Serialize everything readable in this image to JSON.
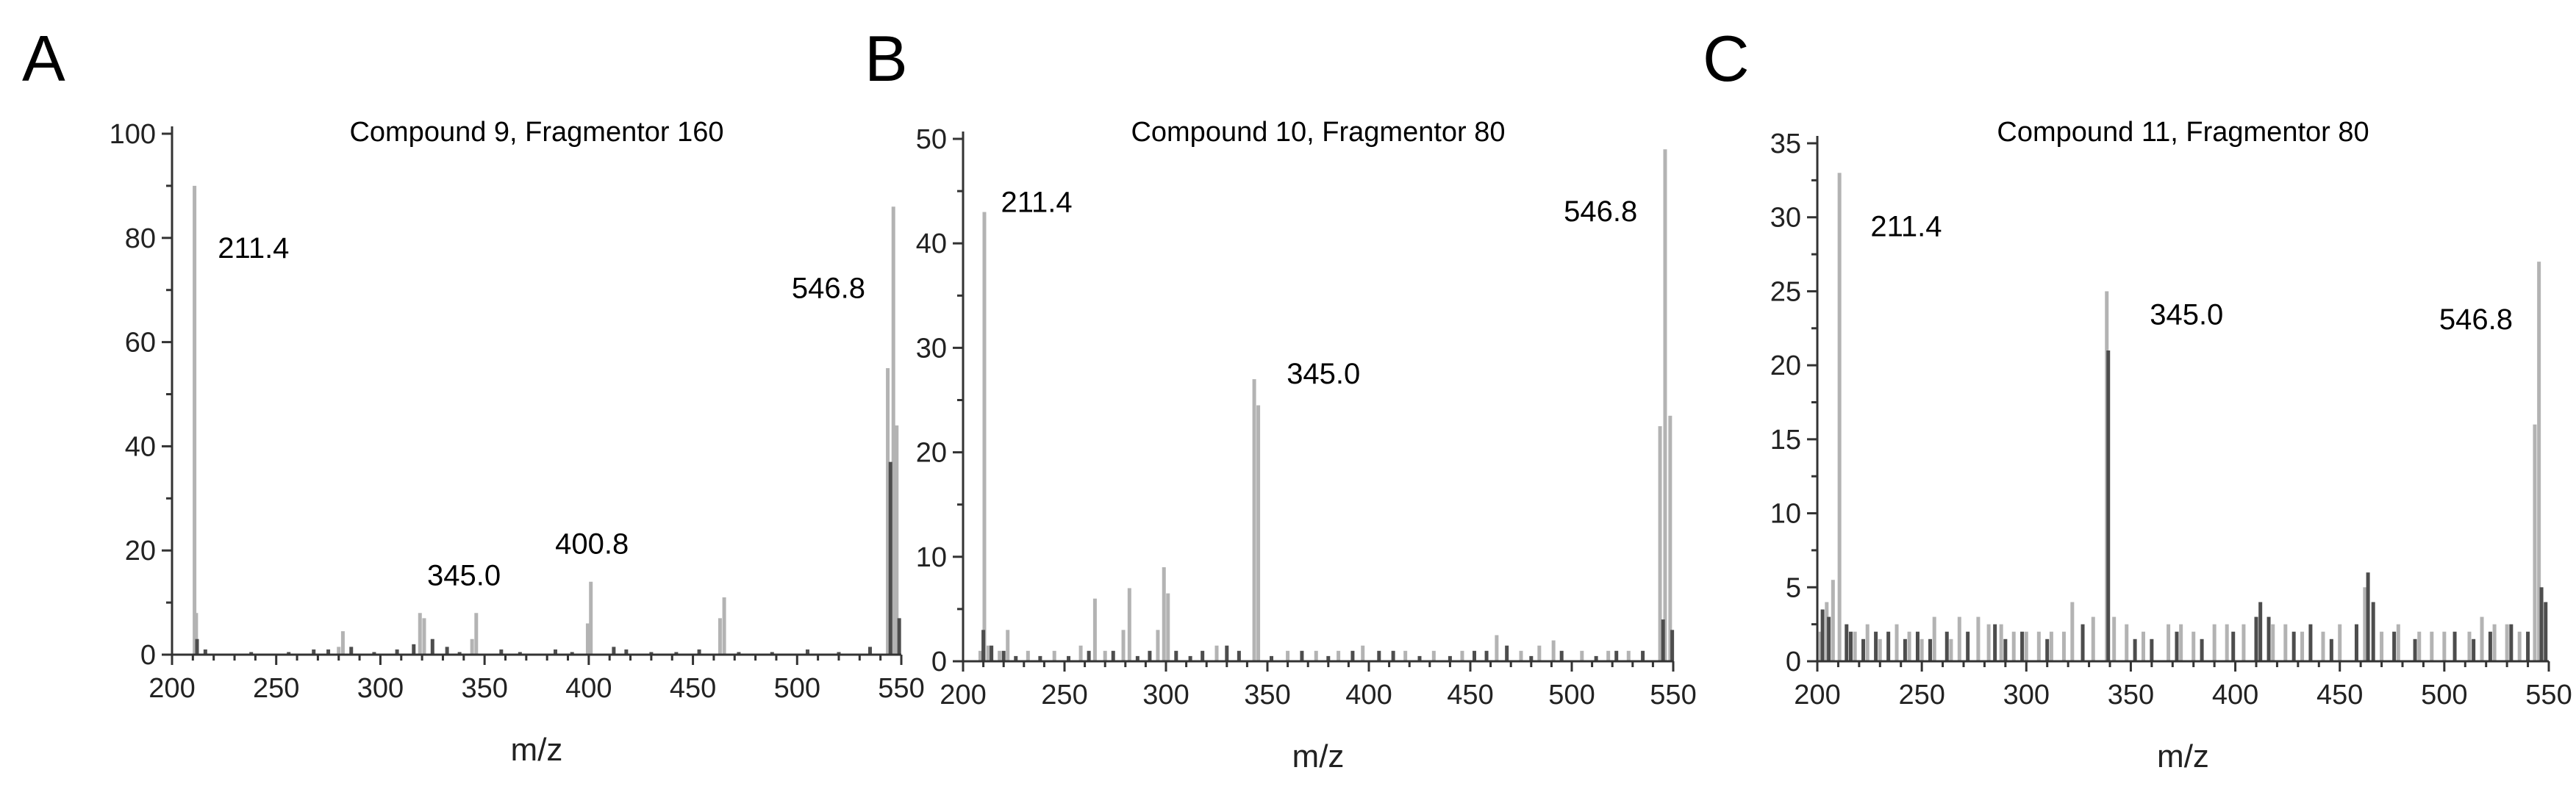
{
  "chart_data": [
    {
      "type": "bar",
      "panel_letter": "A",
      "title": "Compound 9, Fragmentor 160",
      "xlabel": "m/z",
      "ylabel": "",
      "xlim": [
        200,
        550
      ],
      "ylim": [
        0,
        100
      ],
      "xticks": [
        200,
        250,
        300,
        350,
        400,
        450,
        500,
        550
      ],
      "yticks": [
        0,
        20,
        40,
        60,
        80,
        100
      ],
      "grid": false,
      "peak_labels": [
        {
          "text": "211.4",
          "x": 211.4,
          "y": 90
        },
        {
          "text": "345.0",
          "x": 345.0,
          "y": 8
        },
        {
          "text": "400.8",
          "x": 400.8,
          "y": 14
        },
        {
          "text": "546.8",
          "x": 546.8,
          "y": 86
        }
      ],
      "series": [
        {
          "color": "#b3b3b3",
          "x": [
            210.8,
            211.6,
            280,
            282,
            319,
            321,
            344,
            346,
            399.5,
            401,
            463,
            465,
            543.5,
            546.2,
            547.8
          ],
          "y": [
            90,
            8,
            1.5,
            4.5,
            8,
            7,
            3,
            8,
            6,
            14,
            7,
            11,
            55,
            86,
            44
          ]
        },
        {
          "color": "#4d4d4d",
          "x": [
            212,
            216,
            238,
            256,
            268,
            275,
            286,
            297,
            308,
            316,
            325,
            332,
            338,
            358,
            367,
            384,
            392,
            412,
            418,
            430,
            442,
            453,
            472,
            488,
            505,
            520,
            535,
            544.8,
            549
          ],
          "y": [
            3,
            1,
            0.5,
            0.5,
            1,
            1,
            1.5,
            0.5,
            1,
            2,
            3,
            1.5,
            0.5,
            1,
            0.5,
            1,
            0.5,
            1.5,
            1,
            0.5,
            0.5,
            1,
            0.5,
            0.5,
            1,
            0.5,
            1.5,
            37,
            7
          ]
        }
      ]
    },
    {
      "type": "bar",
      "panel_letter": "B",
      "title": "Compound 10, Fragmentor 80",
      "xlabel": "m/z",
      "ylabel": "",
      "xlim": [
        200,
        550
      ],
      "ylim": [
        0,
        50
      ],
      "xticks": [
        200,
        250,
        300,
        350,
        400,
        450,
        500,
        550
      ],
      "yticks": [
        0,
        10,
        20,
        30,
        40,
        50
      ],
      "grid": false,
      "peak_labels": [
        {
          "text": "211.4",
          "x": 211.4,
          "y": 43
        },
        {
          "text": "345.0",
          "x": 345.0,
          "y": 27
        },
        {
          "text": "546.8",
          "x": 546.8,
          "y": 49
        }
      ],
      "series": [
        {
          "color": "#b3b3b3",
          "x": [
            208.5,
            210.5,
            212.5,
            218,
            222,
            232,
            245,
            258,
            265,
            270,
            279,
            282,
            296,
            299,
            301,
            325,
            343.5,
            345.5,
            360,
            374,
            385,
            397,
            418,
            432,
            446,
            463,
            475,
            484,
            491,
            505,
            518,
            528,
            543.5,
            546,
            548.5
          ],
          "y": [
            1,
            43,
            1.5,
            1,
            3,
            1,
            1,
            1.5,
            6,
            1,
            3,
            7,
            3,
            9,
            6.5,
            1.5,
            27,
            24.5,
            1,
            1,
            1,
            1.5,
            1,
            1,
            1,
            2.5,
            1,
            1.5,
            2,
            1,
            1,
            1,
            22.5,
            49,
            23.5
          ]
        },
        {
          "color": "#4d4d4d",
          "x": [
            210,
            214,
            220,
            226,
            238,
            252,
            262,
            274,
            286,
            292,
            305,
            312,
            318,
            330,
            336,
            352,
            367,
            380,
            392,
            405,
            412,
            425,
            440,
            452,
            458,
            468,
            480,
            495,
            512,
            522,
            535,
            545,
            549.5
          ],
          "y": [
            3,
            1.5,
            1,
            0.5,
            0.5,
            0.5,
            1,
            1,
            0.5,
            1,
            1,
            0.5,
            1,
            1.5,
            1,
            0.5,
            1,
            0.5,
            1,
            1,
            1,
            0.5,
            0.5,
            1,
            1,
            1.5,
            0.5,
            1,
            0.5,
            1,
            1,
            4,
            3
          ]
        }
      ]
    },
    {
      "type": "bar",
      "panel_letter": "C",
      "title": "Compound 11, Fragmentor 80",
      "xlabel": "m/z",
      "ylabel": "",
      "xlim": [
        200,
        550
      ],
      "ylim": [
        0,
        35
      ],
      "xticks": [
        200,
        250,
        300,
        350,
        400,
        450,
        500,
        550
      ],
      "yticks": [
        0,
        5,
        10,
        15,
        20,
        25,
        30,
        35
      ],
      "grid": false,
      "peak_labels": [
        {
          "text": "211.4",
          "x": 211.4,
          "y": 33
        },
        {
          "text": "345.0",
          "x": 345.0,
          "y": 25
        },
        {
          "text": "546.8",
          "x": 546.8,
          "y": 27
        }
      ],
      "series": [
        {
          "color": "#b3b3b3",
          "x": [
            201.5,
            204.5,
            207.5,
            210.6,
            218,
            224,
            230,
            238,
            244,
            250,
            256,
            264,
            268,
            277,
            282,
            288,
            294,
            300,
            306,
            312,
            318,
            322,
            332,
            338.5,
            342,
            348,
            356,
            368,
            374,
            380,
            390,
            396,
            404,
            418,
            424,
            432,
            442,
            450,
            462,
            470,
            478,
            488,
            494,
            500,
            512,
            518,
            524,
            530,
            536,
            543.3,
            545.3
          ],
          "y": [
            2,
            4,
            5.5,
            33,
            2,
            2.5,
            1.5,
            2.5,
            2,
            1.5,
            3,
            1.5,
            3,
            3,
            2.5,
            2.5,
            2,
            2,
            2,
            2,
            2,
            4,
            3,
            25,
            3,
            2.5,
            2,
            2.5,
            2.5,
            2,
            2.5,
            2.5,
            2.5,
            2.5,
            2.5,
            2,
            2,
            2.5,
            5,
            2,
            2.5,
            2,
            2,
            2,
            2,
            3,
            2.5,
            2.5,
            2,
            16,
            27
          ]
        },
        {
          "color": "#4d4d4d",
          "x": [
            202.5,
            205.5,
            214,
            216,
            222,
            228,
            234,
            242,
            248,
            254,
            262,
            272,
            285,
            290,
            298,
            310,
            327,
            339.2,
            352,
            360,
            372,
            384,
            399,
            410,
            412,
            416,
            428,
            436,
            446,
            458,
            463.5,
            466,
            476,
            486,
            505,
            514,
            522,
            532,
            540,
            546.5,
            548.5
          ],
          "y": [
            3.5,
            3,
            2.5,
            2,
            1.5,
            2,
            2,
            1.5,
            2,
            1.5,
            2,
            2,
            2.5,
            1.5,
            2,
            1.5,
            2.5,
            21,
            1.5,
            1.5,
            2,
            1.5,
            2,
            3,
            4,
            3,
            2,
            2.5,
            1.5,
            2.5,
            6,
            4,
            2,
            1.5,
            2,
            1.5,
            2,
            2.5,
            2,
            5,
            4
          ]
        }
      ]
    }
  ]
}
